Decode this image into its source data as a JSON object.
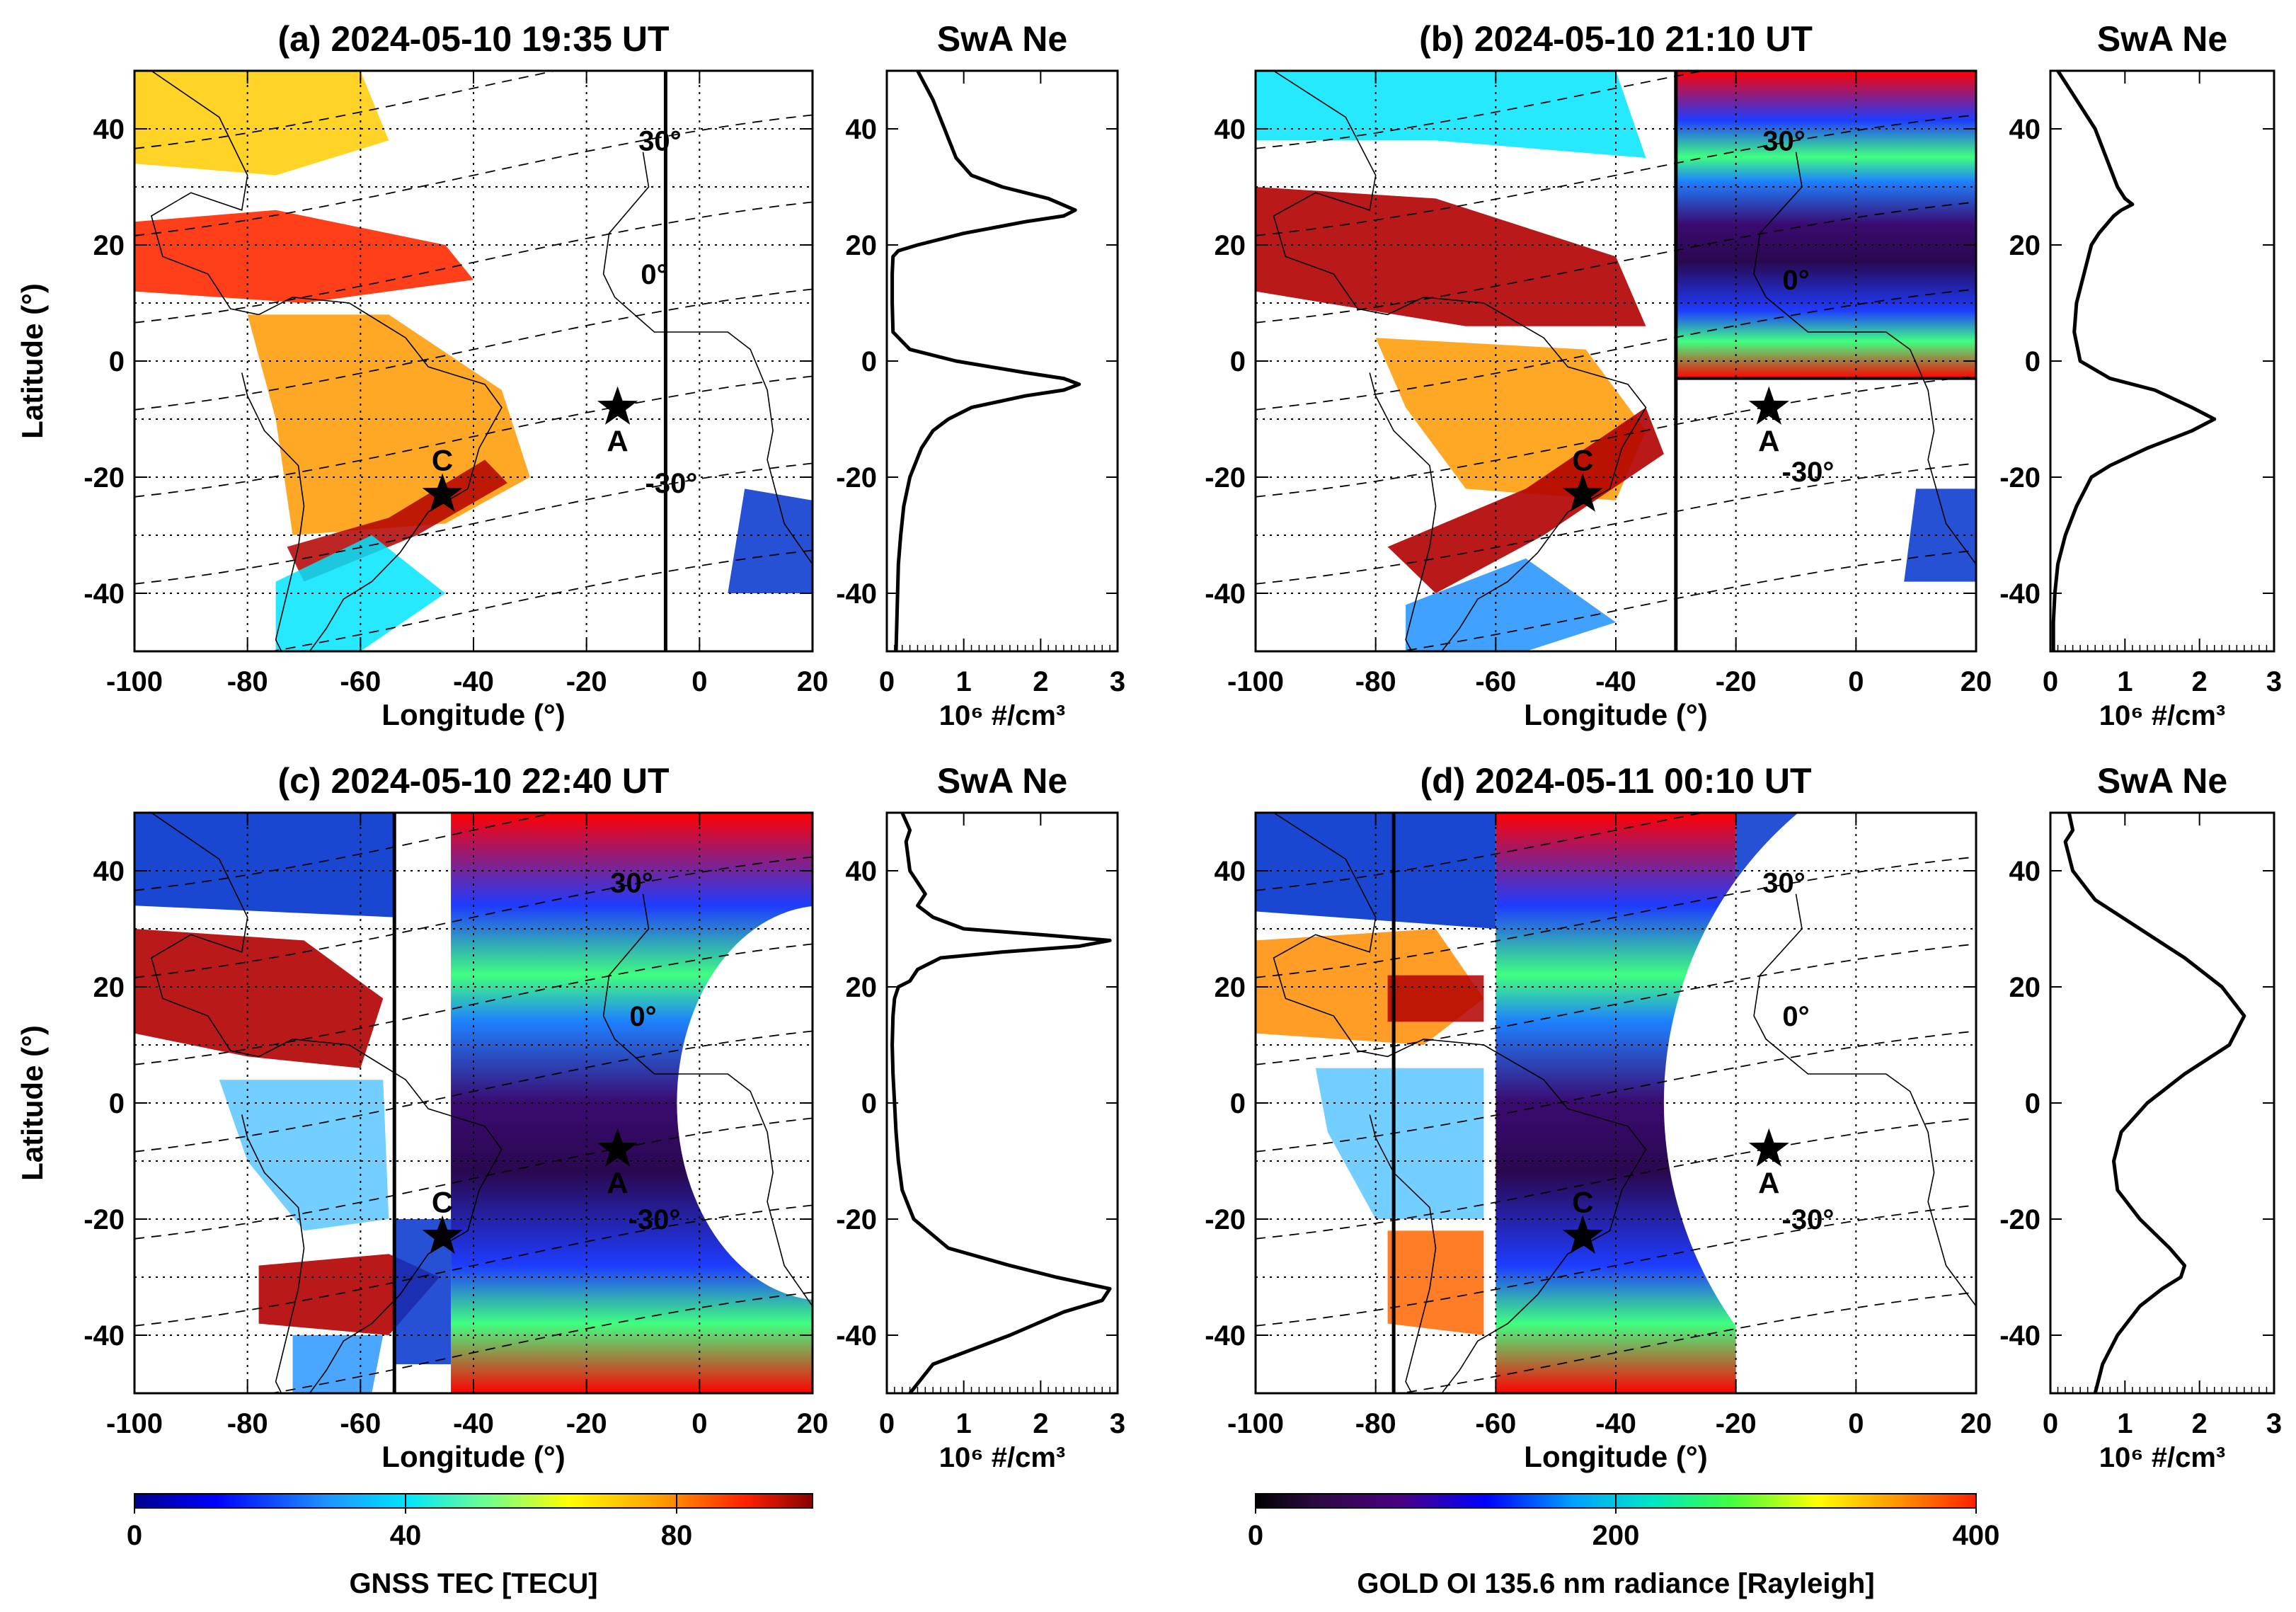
{
  "figure": {
    "tec_colorbar": {
      "label": "GNSS TEC [TECU]",
      "ticks": [
        "0",
        "40",
        "80"
      ],
      "range": [
        0,
        100
      ]
    },
    "gold_colorbar": {
      "label": "GOLD OI 135.6 nm radiance [Rayleigh]",
      "ticks": [
        "0",
        "200",
        "400"
      ],
      "range": [
        0,
        400
      ]
    }
  },
  "chart_data": [
    {
      "panel": "a",
      "type": "heatmap",
      "title": "(a) 2024-05-10 19:35 UT",
      "xlabel": "Longitude (°)",
      "ylabel": "Latitude (°)",
      "xlim": [
        -100,
        20
      ],
      "ylim": [
        -50,
        50
      ],
      "xticks": [
        "-100",
        "-80",
        "-60",
        "-40",
        "-20",
        "0",
        "20"
      ],
      "yticks": [
        "40",
        "20",
        "0",
        "-20",
        "-40"
      ],
      "terminator_lon": -6,
      "gold_region": null,
      "magnetic_labels": [
        {
          "text": "30°",
          "lon": -7,
          "lat": 38
        },
        {
          "text": "0°",
          "lon": -8,
          "lat": 15
        },
        {
          "text": "-30°",
          "lon": -5,
          "lat": -21
        }
      ],
      "markers": [
        {
          "label": "A",
          "lon": -14.5,
          "lat": -8
        },
        {
          "label": "C",
          "lon": -45.5,
          "lat": -23
        }
      ],
      "ne_profile": {
        "title": "SwA Ne",
        "xlabel": "10⁶ #/cm³",
        "xlim": [
          0,
          3
        ],
        "xticks": [
          "0",
          "1",
          "2",
          "3"
        ],
        "yticks": [
          "40",
          "20",
          "0",
          "-20",
          "-40"
        ],
        "lat": [
          50,
          45,
          40,
          35,
          32,
          30,
          28,
          26,
          25,
          24,
          22,
          20,
          19,
          18,
          15,
          10,
          5,
          2,
          0,
          -2,
          -3,
          -4,
          -5,
          -6,
          -8,
          -10,
          -12,
          -15,
          -20,
          -25,
          -30,
          -35,
          -40,
          -45,
          -50
        ],
        "ne": [
          0.4,
          0.6,
          0.75,
          0.9,
          1.1,
          1.5,
          2.1,
          2.45,
          2.3,
          1.8,
          1.0,
          0.4,
          0.15,
          0.08,
          0.07,
          0.07,
          0.08,
          0.3,
          0.9,
          1.8,
          2.3,
          2.5,
          2.3,
          1.8,
          1.1,
          0.8,
          0.6,
          0.45,
          0.3,
          0.22,
          0.18,
          0.15,
          0.14,
          0.13,
          0.12
        ]
      }
    },
    {
      "panel": "b",
      "type": "heatmap",
      "title": "(b) 2024-05-10 21:10 UT",
      "xlabel": "Longitude (°)",
      "ylabel": "Latitude (°)",
      "xlim": [
        -100,
        20
      ],
      "ylim": [
        -50,
        50
      ],
      "xticks": [
        "-100",
        "-80",
        "-60",
        "-40",
        "-20",
        "0",
        "20"
      ],
      "yticks": [
        "40",
        "20",
        "0",
        "-20",
        "-40"
      ],
      "terminator_lon": -30,
      "gold_region": {
        "lon_min": -30,
        "lon_max": 20,
        "lat_min": -3,
        "lat_max": 50
      },
      "magnetic_labels": [
        {
          "text": "30°",
          "lon": -12,
          "lat": 38
        },
        {
          "text": "0°",
          "lon": -10,
          "lat": 14
        },
        {
          "text": "-30°",
          "lon": -8,
          "lat": -19
        }
      ],
      "markers": [
        {
          "label": "A",
          "lon": -14.5,
          "lat": -8
        },
        {
          "label": "C",
          "lon": -45.5,
          "lat": -23
        }
      ],
      "ne_profile": {
        "title": "SwA Ne",
        "xlabel": "10⁶ #/cm³",
        "xlim": [
          0,
          3
        ],
        "xticks": [
          "0",
          "1",
          "2",
          "3"
        ],
        "yticks": [
          "40",
          "20",
          "0",
          "-20",
          "-40"
        ],
        "lat": [
          50,
          48,
          45,
          40,
          35,
          30,
          28,
          27,
          26,
          25,
          22,
          20,
          15,
          10,
          5,
          0,
          -3,
          -5,
          -8,
          -10,
          -12,
          -15,
          -18,
          -20,
          -25,
          -30,
          -35,
          -40,
          -45,
          -50
        ],
        "ne": [
          0.1,
          0.2,
          0.35,
          0.6,
          0.75,
          0.9,
          1.0,
          1.1,
          0.95,
          0.85,
          0.65,
          0.55,
          0.45,
          0.35,
          0.32,
          0.4,
          0.8,
          1.4,
          1.9,
          2.2,
          1.9,
          1.3,
          0.8,
          0.55,
          0.35,
          0.2,
          0.1,
          0.06,
          0.04,
          0.04
        ]
      }
    },
    {
      "panel": "c",
      "type": "heatmap",
      "title": "(c) 2024-05-10 22:40 UT",
      "xlabel": "Longitude (°)",
      "ylabel": "Latitude (°)",
      "xlim": [
        -100,
        20
      ],
      "ylim": [
        -50,
        50
      ],
      "xticks": [
        "-100",
        "-80",
        "-60",
        "-40",
        "-20",
        "0",
        "20"
      ],
      "yticks": [
        "40",
        "20",
        "0",
        "-20",
        "-40"
      ],
      "terminator_lon": -54,
      "gold_region": {
        "lon_min": -44,
        "lon_max": 20,
        "lat_min": -50,
        "lat_max": 50
      },
      "magnetic_labels": [
        {
          "text": "30°",
          "lon": -12,
          "lat": 38
        },
        {
          "text": "0°",
          "lon": -10,
          "lat": 15
        },
        {
          "text": "-30°",
          "lon": -8,
          "lat": -20
        }
      ],
      "markers": [
        {
          "label": "A",
          "lon": -14.5,
          "lat": -8
        },
        {
          "label": "C",
          "lon": -45.5,
          "lat": -23
        }
      ],
      "ne_profile": {
        "title": "SwA Ne",
        "xlabel": "10⁶ #/cm³",
        "xlim": [
          0,
          3
        ],
        "xticks": [
          "0",
          "1",
          "2",
          "3"
        ],
        "yticks": [
          "40",
          "20",
          "0",
          "-20",
          "-40"
        ],
        "lat": [
          50,
          47,
          45,
          40,
          36,
          34,
          32,
          30,
          29,
          28,
          27,
          26,
          25,
          23,
          21,
          20,
          18,
          15,
          10,
          5,
          0,
          -5,
          -10,
          -15,
          -20,
          -25,
          -28,
          -30,
          -32,
          -34,
          -36,
          -40,
          -45,
          -50
        ],
        "ne": [
          0.2,
          0.3,
          0.25,
          0.3,
          0.5,
          0.4,
          0.6,
          1.0,
          2.0,
          2.9,
          2.5,
          1.5,
          0.7,
          0.4,
          0.3,
          0.15,
          0.1,
          0.08,
          0.07,
          0.08,
          0.1,
          0.12,
          0.15,
          0.2,
          0.35,
          0.8,
          1.6,
          2.2,
          2.9,
          2.8,
          2.3,
          1.6,
          0.6,
          0.3
        ]
      }
    },
    {
      "panel": "d",
      "type": "heatmap",
      "title": "(d) 2024-05-11 00:10 UT",
      "xlabel": "Longitude (°)",
      "ylabel": "Latitude (°)",
      "xlim": [
        -100,
        20
      ],
      "ylim": [
        -50,
        50
      ],
      "xticks": [
        "-100",
        "-80",
        "-60",
        "-40",
        "-20",
        "0",
        "20"
      ],
      "yticks": [
        "40",
        "20",
        "0",
        "-20",
        "-40"
      ],
      "terminator_lon": -77,
      "gold_region": {
        "lon_min": -60,
        "lon_max": -20,
        "lat_min": -50,
        "lat_max": 50
      },
      "magnetic_labels": [
        {
          "text": "30°",
          "lon": -12,
          "lat": 38
        },
        {
          "text": "0°",
          "lon": -10,
          "lat": 15
        },
        {
          "text": "-30°",
          "lon": -8,
          "lat": -20
        }
      ],
      "markers": [
        {
          "label": "A",
          "lon": -14.5,
          "lat": -8
        },
        {
          "label": "C",
          "lon": -45.5,
          "lat": -23
        }
      ],
      "ne_profile": {
        "title": "SwA Ne",
        "xlabel": "10⁶ #/cm³",
        "xlim": [
          0,
          3
        ],
        "xticks": [
          "0",
          "1",
          "2",
          "3"
        ],
        "yticks": [
          "40",
          "20",
          "0",
          "-20",
          "-40"
        ],
        "lat": [
          50,
          47,
          45,
          40,
          35,
          30,
          25,
          20,
          15,
          10,
          5,
          0,
          -5,
          -10,
          -15,
          -20,
          -25,
          -28,
          -30,
          -32,
          -35,
          -40,
          -45,
          -50
        ],
        "ne": [
          0.25,
          0.3,
          0.2,
          0.3,
          0.6,
          1.2,
          1.8,
          2.3,
          2.6,
          2.4,
          1.8,
          1.3,
          0.95,
          0.85,
          0.9,
          1.2,
          1.6,
          1.8,
          1.75,
          1.5,
          1.2,
          0.9,
          0.7,
          0.6
        ]
      }
    }
  ]
}
